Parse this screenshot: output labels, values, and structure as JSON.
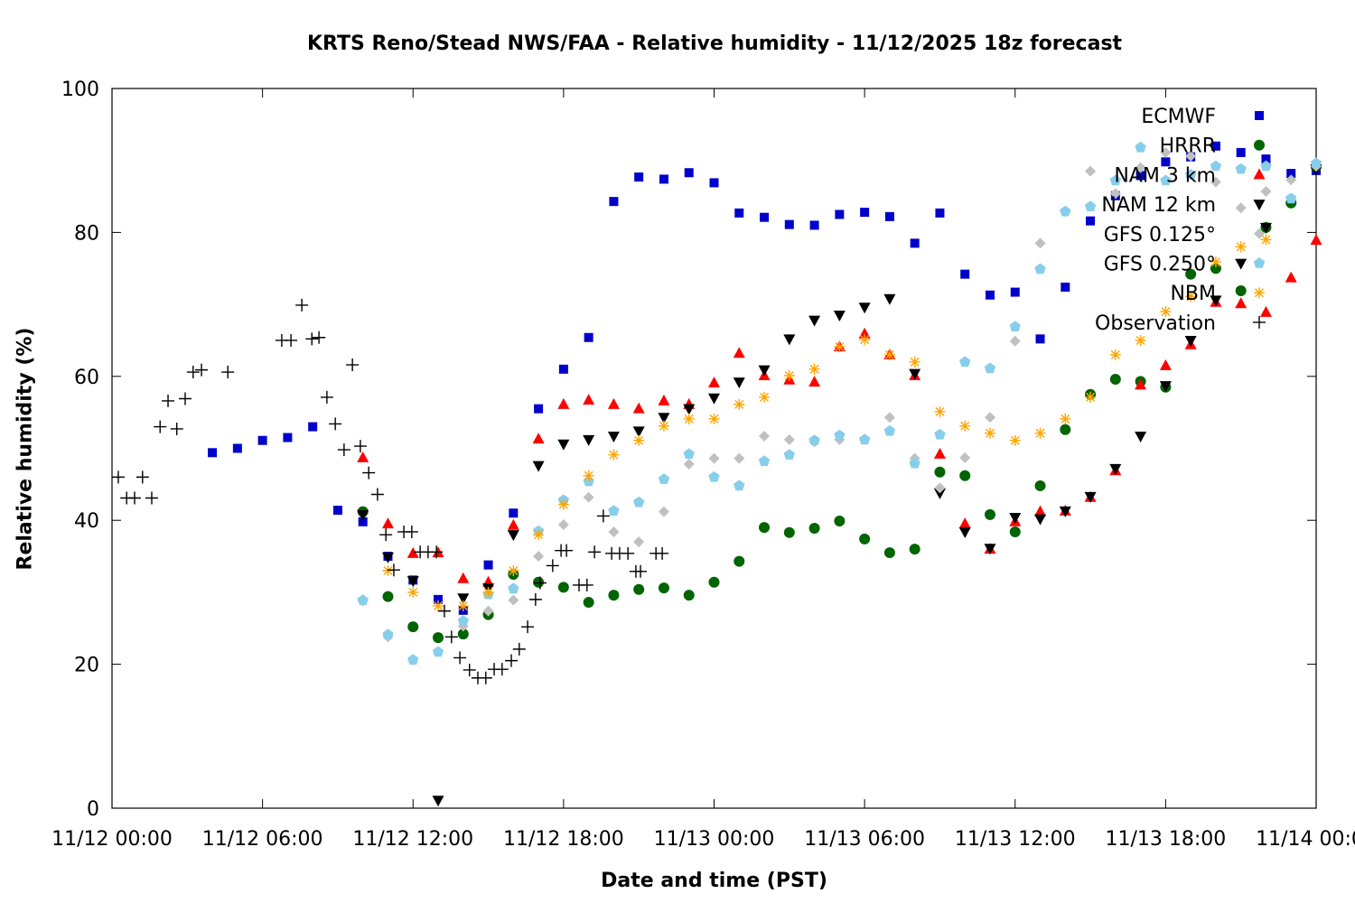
{
  "chart_data": {
    "type": "scatter",
    "title": "KRTS Reno/Stead NWS/FAA - Relative humidity - 11/12/2025 18z forecast",
    "xlabel": "Date and time (PST)",
    "ylabel": "Relative humidity (%)",
    "xlim": [
      "11/12 00:00",
      "11/14 00:00"
    ],
    "ylim": [
      0,
      100
    ],
    "x_ticks": [
      "11/12 00:00",
      "11/12 06:00",
      "11/12 12:00",
      "11/12 18:00",
      "11/13 00:00",
      "11/13 06:00",
      "11/13 12:00",
      "11/13 18:00",
      "11/14 00:00"
    ],
    "y_ticks": [
      0,
      20,
      40,
      60,
      80,
      100
    ],
    "grid": false,
    "legend_position": "top-right",
    "x": [
      "11/12 04:00",
      "11/12 05:00",
      "11/12 06:00",
      "11/12 07:00",
      "11/12 08:00",
      "11/12 09:00",
      "11/12 10:00",
      "11/12 11:00",
      "11/12 12:00",
      "11/12 13:00",
      "11/12 14:00",
      "11/12 15:00",
      "11/12 16:00",
      "11/12 17:00",
      "11/12 18:00",
      "11/12 19:00",
      "11/12 20:00",
      "11/12 21:00",
      "11/12 22:00",
      "11/12 23:00",
      "11/13 00:00",
      "11/13 01:00",
      "11/13 02:00",
      "11/13 03:00",
      "11/13 04:00",
      "11/13 05:00",
      "11/13 06:00",
      "11/13 07:00",
      "11/13 08:00",
      "11/13 09:00",
      "11/13 10:00",
      "11/13 11:00",
      "11/13 12:00",
      "11/13 13:00",
      "11/13 14:00",
      "11/13 15:00",
      "11/13 16:00",
      "11/13 17:00",
      "11/13 18:00",
      "11/13 19:00",
      "11/13 20:00",
      "11/13 21:00",
      "11/13 22:00",
      "11/13 23:00",
      "11/14 00:00"
    ],
    "series": [
      {
        "name": "ECMWF",
        "marker": "square",
        "color": "#0000cc",
        "values": [
          49.4,
          50.0,
          51.1,
          51.5,
          53.0,
          41.4,
          39.8,
          35.0,
          31.7,
          29.0,
          27.5,
          33.8,
          41.0,
          55.5,
          61.0,
          65.4,
          84.3,
          87.7,
          87.4,
          88.3,
          86.9,
          82.7,
          82.1,
          81.1,
          81.0,
          82.5,
          82.8,
          82.2,
          78.5,
          82.7,
          74.2,
          71.3,
          71.7,
          65.2,
          72.4,
          81.6,
          85.1,
          87.9,
          89.8,
          90.5,
          92.0,
          91.1,
          90.2,
          88.2,
          88.6
        ]
      },
      {
        "name": "HRRR",
        "marker": "circle",
        "color": "#006400",
        "values": [
          null,
          null,
          null,
          null,
          null,
          null,
          41.2,
          29.4,
          25.2,
          23.7,
          24.2,
          26.9,
          32.5,
          31.4,
          30.7,
          28.6,
          29.6,
          30.4,
          30.6,
          29.6,
          31.4,
          34.3,
          39.0,
          38.3,
          38.9,
          39.9,
          37.4,
          35.5,
          36.0,
          46.7,
          46.2,
          40.8,
          38.4,
          44.8,
          52.6,
          57.5,
          59.6,
          59.3,
          58.5,
          74.2,
          75.0,
          71.9,
          80.7,
          84.1,
          89.1
        ]
      },
      {
        "name": "NAM 3 km",
        "marker": "triangle-up",
        "color": "#ff0000",
        "values": [
          null,
          null,
          null,
          null,
          null,
          null,
          48.7,
          39.5,
          35.4,
          35.5,
          31.9,
          31.4,
          39.3,
          51.3,
          56.1,
          56.7,
          56.1,
          55.5,
          56.6,
          56.1,
          59.1,
          63.2,
          60.1,
          59.5,
          59.2,
          64.1,
          65.9,
          63.0,
          60.1,
          49.2,
          39.5,
          36.0,
          39.8,
          41.2,
          41.3,
          43.2,
          46.9,
          58.8,
          61.5,
          64.4,
          70.3,
          70.1,
          68.9,
          73.7,
          78.9
        ]
      },
      {
        "name": "NAM 12 km",
        "marker": "triangle-down",
        "color": "#000000",
        "values": [
          null,
          null,
          null,
          null,
          null,
          null,
          40.8,
          34.9,
          31.6,
          1.1,
          29.2,
          30.6,
          38.0,
          47.6,
          50.6,
          51.2,
          51.7,
          52.4,
          54.3,
          55.5,
          57.0,
          59.2,
          60.9,
          65.2,
          67.8,
          68.5,
          69.6,
          70.8,
          60.4,
          43.8,
          38.4,
          36.1,
          40.4,
          40.2,
          41.3,
          43.3,
          47.2,
          51.7,
          58.7,
          65.0,
          70.6,
          75.7,
          80.7,
          null,
          88.8
        ]
      },
      {
        "name": "GFS 0.125°",
        "marker": "diamond",
        "color": "#c0c0c0",
        "values": [
          null,
          null,
          null,
          null,
          null,
          null,
          28.8,
          23.8,
          20.6,
          null,
          25.3,
          27.4,
          28.9,
          35.0,
          39.4,
          43.2,
          38.4,
          37.0,
          41.2,
          47.8,
          48.6,
          48.6,
          51.7,
          51.2,
          50.9,
          51.2,
          51.3,
          54.3,
          48.6,
          44.5,
          48.7,
          54.3,
          64.9,
          78.5,
          82.9,
          88.5,
          85.4,
          89.0,
          91.1,
          90.6,
          87.0,
          83.4,
          85.7,
          87.3,
          89.2
        ]
      },
      {
        "name": "GFS 0.250°",
        "marker": "pentagon",
        "color": "#87ceeb",
        "values": [
          null,
          null,
          null,
          null,
          null,
          null,
          28.9,
          24.1,
          20.6,
          21.7,
          26.0,
          29.7,
          30.5,
          38.5,
          42.8,
          45.4,
          41.3,
          42.5,
          45.7,
          49.2,
          46.0,
          44.8,
          48.2,
          49.1,
          51.1,
          51.8,
          51.2,
          52.4,
          47.9,
          51.9,
          62.0,
          61.1,
          66.9,
          74.9,
          82.9,
          83.6,
          87.2,
          91.8,
          87.2,
          88.0,
          89.2,
          88.8,
          89.2,
          84.7,
          89.6
        ]
      },
      {
        "name": "NBM",
        "marker": "asterisk",
        "color": "#ffa500",
        "values": [
          null,
          null,
          null,
          null,
          null,
          null,
          null,
          33.0,
          30.0,
          28.1,
          28.1,
          30.0,
          33.0,
          38.0,
          42.2,
          46.2,
          49.1,
          51.1,
          53.1,
          54.1,
          54.1,
          56.1,
          57.1,
          60.1,
          61.0,
          64.1,
          65.1,
          63.0,
          62.0,
          55.1,
          53.1,
          52.1,
          51.1,
          52.1,
          54.1,
          57.1,
          63.0,
          65.0,
          69.0,
          71.1,
          75.9,
          78.0,
          79.0,
          null,
          null
        ]
      }
    ],
    "observation": {
      "name": "Observation",
      "marker": "plus",
      "color": "#000000",
      "x": [
        "11/12 00:15",
        "11/12 00:35",
        "11/12 00:54",
        "11/12 01:13",
        "11/12 01:35",
        "11/12 01:55",
        "11/12 02:14",
        "11/12 02:35",
        "11/12 02:55",
        "11/12 03:14",
        "11/12 03:34",
        "11/12 04:37",
        "11/12 06:46",
        "11/12 07:08",
        "11/12 07:34",
        "11/12 07:58",
        "11/12 08:15",
        "11/12 08:34",
        "11/12 08:54",
        "11/12 09:15",
        "11/12 09:35",
        "11/12 09:54",
        "11/12 10:14",
        "11/12 10:35",
        "11/12 10:55",
        "11/12 11:14",
        "11/12 11:38",
        "11/12 11:57",
        "11/12 12:17",
        "11/12 12:36",
        "11/12 12:56",
        "11/12 13:15",
        "11/12 13:32",
        "11/12 13:52",
        "11/12 14:15",
        "11/12 14:35",
        "11/12 14:54",
        "11/12 15:14",
        "11/12 15:33",
        "11/12 15:55",
        "11/12 16:14",
        "11/12 16:34",
        "11/12 16:53",
        "11/12 17:04",
        "11/12 17:34",
        "11/12 17:54",
        "11/12 18:07",
        "11/12 18:37",
        "11/12 18:56",
        "11/12 19:14",
        "11/12 19:35",
        "11/12 19:55",
        "11/12 20:14",
        "11/12 20:34",
        "11/12 20:53",
        "11/12 21:04",
        "11/12 21:41",
        "11/12 21:56"
      ],
      "values": [
        46.0,
        43.1,
        43.1,
        46.0,
        43.1,
        53.0,
        56.6,
        52.7,
        56.9,
        60.6,
        60.9,
        60.6,
        65.0,
        65.0,
        69.9,
        65.2,
        65.4,
        57.1,
        53.4,
        49.8,
        61.6,
        50.3,
        46.6,
        43.6,
        38.0,
        33.1,
        38.4,
        38.4,
        35.6,
        35.6,
        35.6,
        27.4,
        23.8,
        20.9,
        19.2,
        18.1,
        18.1,
        19.3,
        19.3,
        20.5,
        22.1,
        25.2,
        29.0,
        31.3,
        33.7,
        35.8,
        35.8,
        31.0,
        31.0,
        35.6,
        40.6,
        35.4,
        35.4,
        35.4,
        32.9,
        32.9,
        35.4,
        35.4
      ]
    }
  }
}
